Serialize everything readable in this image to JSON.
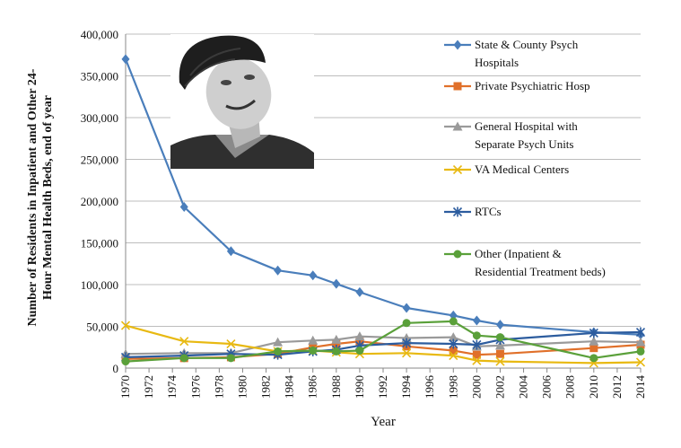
{
  "chart_data": {
    "type": "line",
    "title": "",
    "xlabel": "Year",
    "ylabel_line1": "Number of Residents in Inpatient and Other 24-",
    "ylabel_line2": "Hour Mental Health Beds, end of year",
    "xlim": [
      1970,
      2014
    ],
    "ylim": [
      0,
      400000
    ],
    "x_ticks": [
      1970,
      1972,
      1974,
      1976,
      1978,
      1980,
      1982,
      1984,
      1986,
      1988,
      1990,
      1992,
      1994,
      1996,
      1998,
      2000,
      2002,
      2004,
      2006,
      2008,
      2010,
      2012,
      2014
    ],
    "y_ticks": [
      0,
      50000,
      100000,
      150000,
      200000,
      250000,
      300000,
      350000,
      400000
    ],
    "y_tick_labels": [
      "0",
      "50,000",
      "100,000",
      "150,000",
      "200,000",
      "250,000",
      "300,000",
      "350,000",
      "400,000"
    ],
    "grid": "horizontal",
    "legend_position": "right",
    "series": [
      {
        "name": "State & County Psych Hospitals",
        "legend_lines": [
          "State & County Psych",
          "Hospitals"
        ],
        "color": "#4a7ebb",
        "marker": "diamond",
        "x": [
          1970,
          1975,
          1979,
          1983,
          1986,
          1988,
          1990,
          1994,
          1998,
          2000,
          2002,
          2010,
          2014
        ],
        "values": [
          370000,
          193000,
          140000,
          117000,
          111000,
          101000,
          91000,
          72000,
          63000,
          57000,
          52000,
          43000,
          40000
        ]
      },
      {
        "name": "Private Psychiatric Hosp",
        "legend_lines": [
          "Private Psychiatric Hosp"
        ],
        "color": "#e0702a",
        "marker": "square",
        "x": [
          1970,
          1975,
          1979,
          1983,
          1986,
          1988,
          1990,
          1994,
          1998,
          2000,
          2002,
          2010,
          2014
        ],
        "values": [
          11000,
          12000,
          13000,
          17000,
          25000,
          29000,
          32000,
          26000,
          21000,
          16000,
          17000,
          24000,
          28000
        ]
      },
      {
        "name": "General Hospital with Separate Psych Units",
        "legend_lines": [
          "General Hospital with",
          "Separate Psych Units"
        ],
        "color": "#9a9a9a",
        "marker": "triangle",
        "x": [
          1970,
          1975,
          1979,
          1983,
          1986,
          1988,
          1990,
          1994,
          1998,
          2000,
          2002,
          2010,
          2014
        ],
        "values": [
          17000,
          18000,
          18000,
          31000,
          33000,
          34000,
          38000,
          36000,
          37000,
          26000,
          27000,
          32000,
          31000
        ]
      },
      {
        "name": "VA Medical Centers",
        "legend_lines": [
          "VA Medical Centers"
        ],
        "color": "#e8b912",
        "marker": "x",
        "x": [
          1970,
          1975,
          1979,
          1983,
          1986,
          1988,
          1990,
          1994,
          1998,
          2000,
          2002,
          2010,
          2014
        ],
        "values": [
          51000,
          32000,
          29000,
          20000,
          21000,
          19000,
          17000,
          18000,
          15000,
          9000,
          8000,
          6000,
          7000
        ]
      },
      {
        "name": "RTCs",
        "legend_lines": [
          "RTCs"
        ],
        "color": "#2c5c9e",
        "marker": "star",
        "x": [
          1970,
          1975,
          1979,
          1983,
          1986,
          1988,
          1990,
          1994,
          1998,
          2000,
          2002,
          2010,
          2014
        ],
        "values": [
          13000,
          15000,
          17000,
          16000,
          20000,
          22000,
          27000,
          30000,
          29000,
          28000,
          34000,
          42000,
          43000
        ]
      },
      {
        "name": "Other (Inpatient & Residential Treatment beds)",
        "legend_lines": [
          "Other (Inpatient &",
          "Residential Treatment beds)"
        ],
        "color": "#5aa03a",
        "marker": "circle",
        "x": [
          1970,
          1975,
          1979,
          1983,
          1986,
          1988,
          1990,
          1994,
          1998,
          2000,
          2002,
          2010,
          2014
        ],
        "values": [
          8000,
          12000,
          12000,
          20000,
          21000,
          20000,
          21000,
          54000,
          56000,
          39000,
          37000,
          12000,
          20000
        ]
      }
    ]
  }
}
